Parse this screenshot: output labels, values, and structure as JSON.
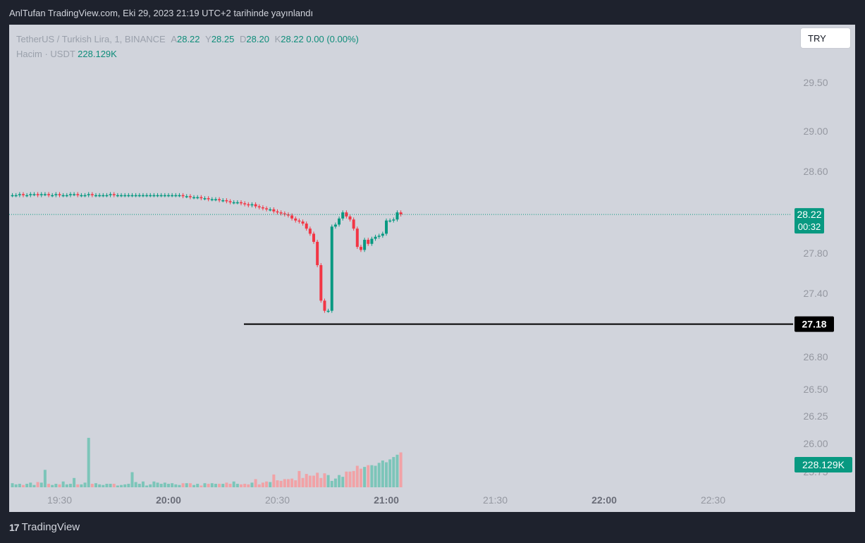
{
  "header": {
    "published": "AnlTufan TradingView.com, Eki 29, 2023 21:19 UTC+2 tarihinde yayınlandı"
  },
  "legend": {
    "symbol": "TetherUS / Turkish Lira, 1, BINANCE",
    "o_label": "A",
    "o": "28.22",
    "h_label": "Y",
    "h": "28.25",
    "l_label": "D",
    "l": "28.20",
    "c_label": "K",
    "c": "28.22",
    "change": "0.00 (0.00%)",
    "volume_label": "Hacim · USDT",
    "volume": "228.129K"
  },
  "currency_button": "TRY",
  "footer": {
    "brand": "TradingView",
    "logo_mark": "17"
  },
  "colors": {
    "up": "#089981",
    "down": "#f23645",
    "vol_up": "#7cc5b9",
    "vol_down": "#f1a2a6",
    "panel": "#d1d4dc",
    "axis_text": "#9598a1"
  },
  "chart_data": {
    "type": "candlestick",
    "price_axis_ticks": [
      "29.50",
      "29.00",
      "28.60",
      "27.80",
      "27.40",
      "27.10",
      "26.80",
      "26.50",
      "26.25",
      "26.00",
      "25.75"
    ],
    "time_axis_ticks": [
      "19:30",
      "20:00",
      "20:30",
      "21:00",
      "21:30",
      "22:00",
      "22:30"
    ],
    "last_price_label": "28.22",
    "countdown_label": "00:32",
    "volume_label": "228.129K",
    "horizontal_line": {
      "price": 27.18,
      "label": "27.18"
    },
    "price_ylim": [
      26.95,
      29.65
    ],
    "volume_ymax": 200,
    "candles_start_time": "19:17",
    "candle_interval_min": 1,
    "close": [
      28.41,
      28.41,
      28.42,
      28.41,
      28.41,
      28.42,
      28.42,
      28.41,
      28.42,
      28.42,
      28.41,
      28.41,
      28.42,
      28.41,
      28.41,
      28.41,
      28.42,
      28.42,
      28.41,
      28.41,
      28.41,
      28.42,
      28.41,
      28.41,
      28.41,
      28.41,
      28.41,
      28.42,
      28.41,
      28.41,
      28.41,
      28.41,
      28.41,
      28.41,
      28.41,
      28.41,
      28.41,
      28.41,
      28.41,
      28.41,
      28.41,
      28.41,
      28.41,
      28.41,
      28.41,
      28.41,
      28.41,
      28.4,
      28.4,
      28.39,
      28.39,
      28.39,
      28.38,
      28.38,
      28.37,
      28.37,
      28.37,
      28.36,
      28.36,
      28.35,
      28.34,
      28.34,
      28.34,
      28.33,
      28.32,
      28.31,
      28.32,
      28.3,
      28.29,
      28.28,
      28.27,
      28.27,
      28.25,
      28.24,
      28.23,
      28.22,
      28.21,
      28.18,
      28.16,
      28.15,
      28.13,
      28.08,
      28.03,
      27.95,
      27.72,
      27.37,
      27.27,
      27.27,
      28.1,
      28.12,
      28.18,
      28.24,
      28.2,
      28.17,
      28.08,
      27.9,
      27.87,
      27.97,
      27.93,
      27.98,
      28.0,
      28.01,
      28.03,
      28.16,
      28.16,
      28.17,
      28.24,
      28.22
    ],
    "volume": [
      7,
      5,
      6,
      4,
      6,
      8,
      4,
      9,
      8,
      30,
      6,
      4,
      6,
      5,
      10,
      5,
      6,
      16,
      5,
      5,
      8,
      85,
      6,
      7,
      5,
      4,
      6,
      6,
      6,
      3,
      4,
      5,
      6,
      26,
      9,
      6,
      10,
      3,
      5,
      10,
      8,
      6,
      8,
      6,
      7,
      5,
      4,
      7,
      7,
      7,
      4,
      6,
      3,
      7,
      6,
      7,
      6,
      6,
      6,
      8,
      6,
      10,
      6,
      5,
      6,
      5,
      8,
      14,
      5,
      8,
      10,
      9,
      22,
      12,
      11,
      14,
      14,
      15,
      12,
      28,
      16,
      23,
      20,
      20,
      25,
      16,
      24,
      21,
      11,
      15,
      21,
      18,
      27,
      27,
      28,
      37,
      32,
      35,
      38,
      38,
      37,
      42,
      46,
      43,
      48,
      52,
      56,
      60
    ],
    "volume_colors_note": "volume bar color follows candle direction"
  }
}
